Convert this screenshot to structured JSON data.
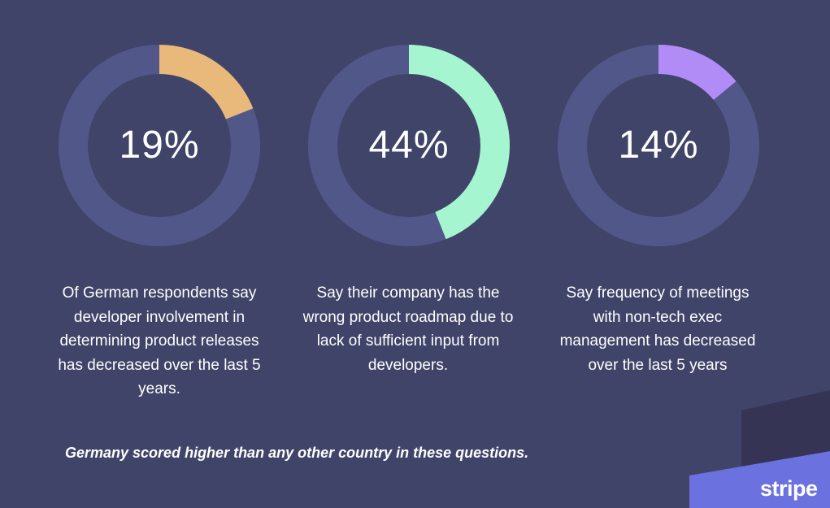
{
  "colors": {
    "background": "#404468",
    "track": "#52578a",
    "accent1": "#e9b97c",
    "accent2": "#a5f5d0",
    "accent3": "#b28cf6",
    "ribbon_light": "#6b71de",
    "ribbon_dark": "#343250"
  },
  "chart_data": {
    "type": "donut",
    "items": [
      {
        "value": 19,
        "label": "19%",
        "caption": "Of German respondents say developer involvement in determining product releases has decreased over the last 5 years.",
        "color": "#e9b97c"
      },
      {
        "value": 44,
        "label": "44%",
        "caption": "Say their company has the wrong product roadmap due to lack of sufficient input from developers.",
        "color": "#a5f5d0"
      },
      {
        "value": 14,
        "label": "14%",
        "caption": "Say frequency of meetings with non-tech exec management has decreased over the last 5 years",
        "color": "#b28cf6"
      }
    ]
  },
  "footnote": "Germany scored higher than any other country in these questions.",
  "logo": {
    "text": "stripe"
  }
}
